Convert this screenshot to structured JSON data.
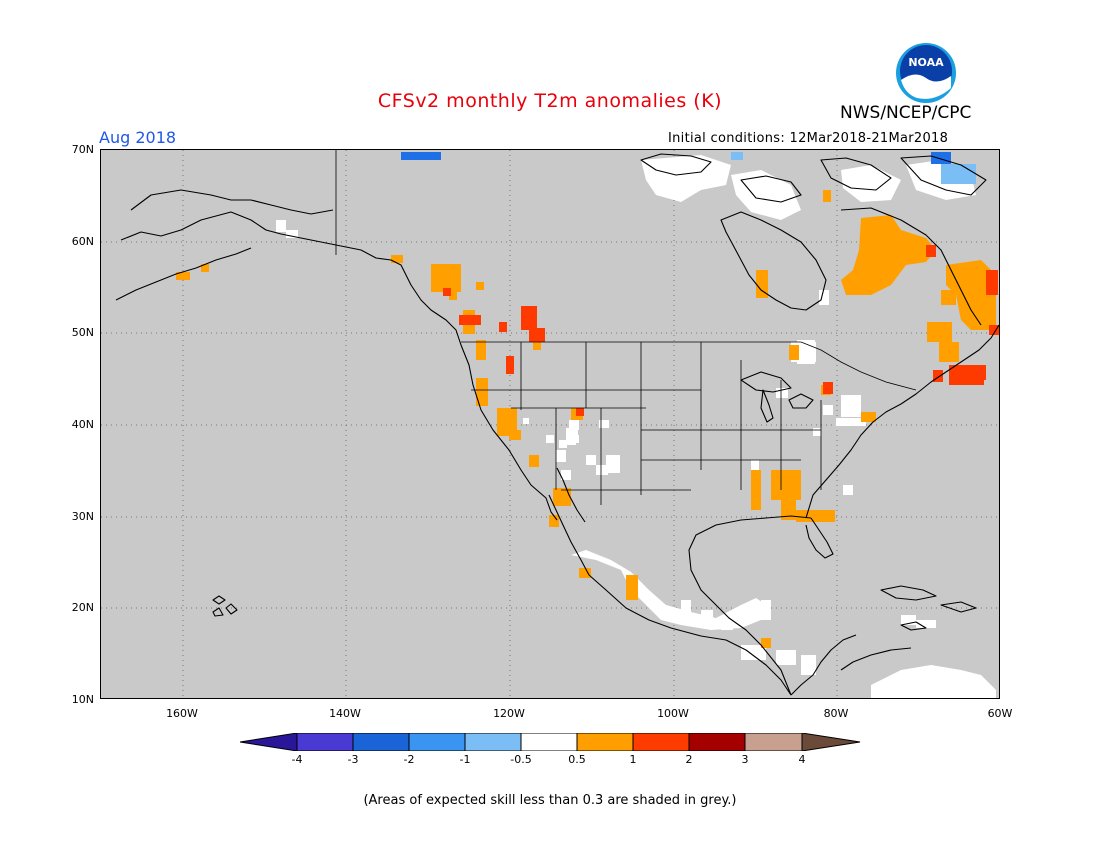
{
  "header": {
    "title": "CFSv2 monthly T2m anomalies (K)",
    "agency": "NWS/NCEP/CPC",
    "logo_text": "NOAA",
    "valid_month": "Aug 2018",
    "initial_conditions": "Initial conditions: 12Mar2018-21Mar2018"
  },
  "map": {
    "projection": "lat-lon",
    "lat_range": [
      10,
      70
    ],
    "lon_range": [
      -170,
      -60
    ],
    "lat_ticks": [
      "70N",
      "60N",
      "50N",
      "40N",
      "30N",
      "20N",
      "10N"
    ],
    "lon_ticks": [
      "160W",
      "140W",
      "120W",
      "100W",
      "80W",
      "60W"
    ],
    "gridlines": "dotted",
    "land_shading": "grey (skill < 0.3)"
  },
  "colorbar": {
    "labels": [
      "-4",
      "-3",
      "-2",
      "-1",
      "-0.5",
      "0.5",
      "1",
      "2",
      "3",
      "4"
    ],
    "colors": [
      "#2a1699",
      "#4a3ad4",
      "#1a64d8",
      "#3a95f0",
      "#7bbdf5",
      "#ffffff",
      "#ff9e00",
      "#ff3c00",
      "#a50000",
      "#c8a090",
      "#6b4a3a"
    ]
  },
  "footnote": "(Areas of expected skill less than 0.3 are shaded in grey.)",
  "colors": {
    "grey": "#c9c9c9",
    "white": "#ffffff",
    "orange": "#ffa000",
    "red_orange": "#ff3a00",
    "light_blue": "#7bbdf5",
    "blue": "#1f6fe6"
  }
}
